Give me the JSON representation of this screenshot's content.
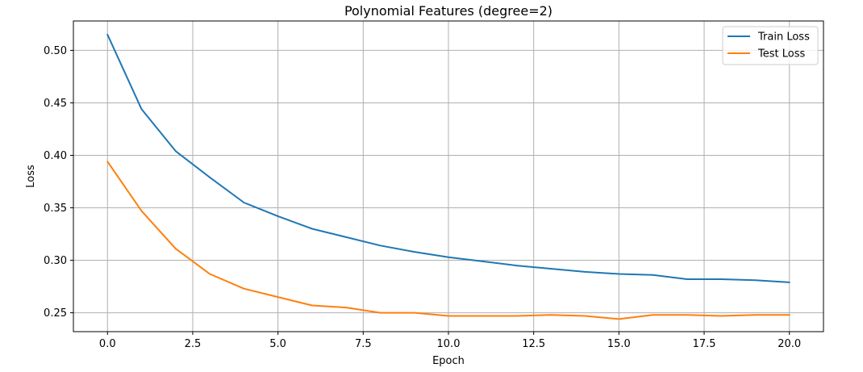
{
  "chart_data": {
    "type": "line",
    "title": "Polynomial Features (degree=2)",
    "xlabel": "Epoch",
    "ylabel": "Loss",
    "xlim": [
      -1,
      21
    ],
    "ylim": [
      0.232,
      0.528
    ],
    "xticks": [
      0.0,
      2.5,
      5.0,
      7.5,
      10.0,
      12.5,
      15.0,
      17.5,
      20.0
    ],
    "xtick_labels": [
      "0.0",
      "2.5",
      "5.0",
      "7.5",
      "10.0",
      "12.5",
      "15.0",
      "17.5",
      "20.0"
    ],
    "yticks": [
      0.25,
      0.3,
      0.35,
      0.4,
      0.45,
      0.5
    ],
    "ytick_labels": [
      "0.25",
      "0.30",
      "0.35",
      "0.40",
      "0.45",
      "0.50"
    ],
    "grid": true,
    "legend_position": "top-right",
    "x": [
      0,
      1,
      2,
      3,
      4,
      5,
      6,
      7,
      8,
      9,
      10,
      11,
      12,
      13,
      14,
      15,
      16,
      17,
      18,
      19,
      20
    ],
    "series": [
      {
        "name": "Train Loss",
        "color": "#1f77b4",
        "values": [
          0.515,
          0.444,
          0.404,
          0.379,
          0.355,
          0.342,
          0.33,
          0.322,
          0.314,
          0.308,
          0.303,
          0.299,
          0.295,
          0.292,
          0.289,
          0.287,
          0.286,
          0.282,
          0.282,
          0.281,
          0.279
        ]
      },
      {
        "name": "Test Loss",
        "color": "#ff7f0e",
        "values": [
          0.394,
          0.347,
          0.311,
          0.287,
          0.273,
          0.265,
          0.257,
          0.255,
          0.25,
          0.25,
          0.247,
          0.247,
          0.247,
          0.248,
          0.247,
          0.244,
          0.248,
          0.248,
          0.247,
          0.248,
          0.248
        ]
      }
    ]
  }
}
